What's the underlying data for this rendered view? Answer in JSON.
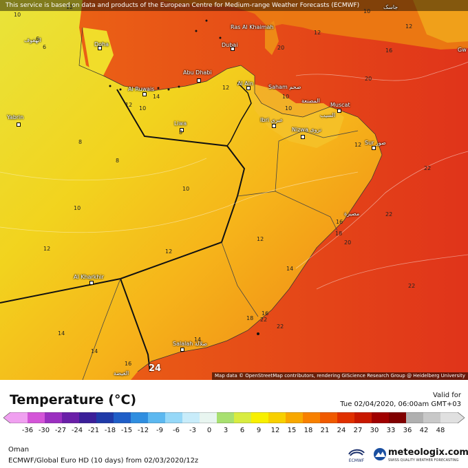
{
  "map": {
    "notice": "This service is based on data and products of the European Centre for Medium-range Weather Forecasts (ECMWF)",
    "attribution": "Map data © OpenStreetMap contributors, rendering GIScience Research Group @ Heidelberg University",
    "cities": {
      "doha": "Doha",
      "hofuf": "الهفوف",
      "ras_al_khaimah": "Ras Al Khaimah",
      "dubai": "Dubai",
      "abu_dhabi": "Abu Dhabi",
      "al_ruwais": "Al Ruwais",
      "al_ain": "Al Ain",
      "saham": "Saham صحم",
      "muscat": "Muscat",
      "liwa": "Liwa",
      "yabrin": "Yabrin",
      "ibri": "Ibri عبري",
      "nizwa": "Nizwa نزوى",
      "sur": "Sur صور",
      "al_kharkhir": "Al Kharkhir",
      "salalah": "Salalah صلالة",
      "ghayda": "الغيضة",
      "gw": "Gw",
      "jask": "جاسک",
      "muscat_ar": "المصنعة",
      "seeb": "السيب",
      "masirah": "مصيرة"
    },
    "isolines": [
      "10",
      "6",
      "6",
      "12",
      "16",
      "12",
      "20",
      "14",
      "12",
      "10",
      "12",
      "10",
      "20",
      "8",
      "8",
      "10",
      "10",
      "12",
      "12",
      "10",
      "10",
      "12",
      "22",
      "22",
      "12",
      "18",
      "20",
      "22",
      "14",
      "22",
      "14",
      "16",
      "18",
      "22",
      "14",
      "16",
      "24",
      "14",
      "16",
      "8",
      "12"
    ]
  },
  "legend": {
    "title": "Temperature (°C)",
    "valid_label": "Valid for",
    "valid_time": "Tue 02/04/2020, 06:00am GMT+03",
    "ticks": [
      "-36",
      "-30",
      "-27",
      "-24",
      "-21",
      "-18",
      "-15",
      "-12",
      "-9",
      "-6",
      "-3",
      "0",
      "3",
      "6",
      "9",
      "12",
      "15",
      "18",
      "21",
      "24",
      "27",
      "30",
      "33",
      "36",
      "42",
      "48"
    ],
    "colors": [
      "#f0a0f0",
      "#d455d8",
      "#9b2fc0",
      "#6a1fa8",
      "#3b1f99",
      "#1f3aa8",
      "#1f5ec7",
      "#2f8ee0",
      "#5cb8f0",
      "#96d8f8",
      "#c8ecfa",
      "#e8f5f0",
      "#a8e070",
      "#d8ec40",
      "#f8f000",
      "#f8d000",
      "#f8a800",
      "#f88000",
      "#f05a00",
      "#e03000",
      "#c81800",
      "#a00000",
      "#800000",
      "#b0b0b0",
      "#c8c8c8",
      "#e0e0e0"
    ]
  },
  "footer": {
    "region": "Oman",
    "model": "ECMWF/Global Euro HD (10 days) from 02/03/2020/12z",
    "ecmwf_logo": "ECMWF",
    "brand": "meteologix.com",
    "brand_sub": "SWISS QUALITY WEATHER FORECASTING"
  }
}
